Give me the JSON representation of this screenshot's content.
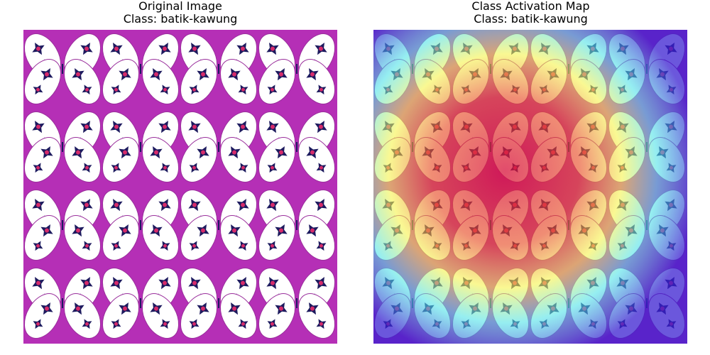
{
  "panels": [
    {
      "title": "Original Image",
      "class_label": "Class: batik-kawung"
    },
    {
      "title": "Class Activation Map",
      "class_label": "Class: batik-kawung"
    }
  ],
  "colors": {
    "background_magenta": "#b52fb6",
    "motif_white": "#ffffff",
    "motif_dark": "#1d1a5e",
    "motif_center": "#d62b6b",
    "heatmap_low": "#3a1fd0",
    "heatmap_mid": "#f6f34a",
    "heatmap_high": "#d8103a"
  }
}
